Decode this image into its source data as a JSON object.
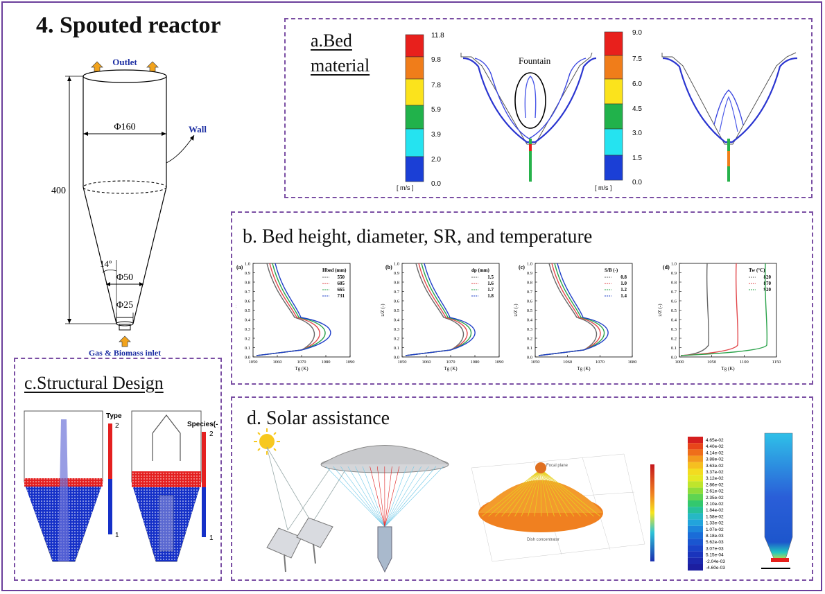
{
  "main_title": "4. Spouted reactor",
  "reactor": {
    "outlet": "Outlet",
    "wall": "Wall",
    "inlet": "Gas & Biomass inlet",
    "d160": "Φ160",
    "d50": "Φ50",
    "d25": "Φ25",
    "height": "400",
    "angle": "14º"
  },
  "panel_a": {
    "title_line1": "a.Bed",
    "title_line2": "material",
    "fountain": "Fountain",
    "unit": "[ m/s ]",
    "scale1": [
      "11.8",
      "9.8",
      "7.8",
      "5.9",
      "3.9",
      "2.0",
      "0.0"
    ],
    "scale2": [
      "9.0",
      "7.5",
      "6.0",
      "4.5",
      "3.0",
      "1.5",
      "0.0"
    ]
  },
  "panel_b": {
    "title": "b. Bed height, diameter, SR, and temperature",
    "ylabel": "z/Z (-)",
    "xlabel": "Tg (K)",
    "yticks": [
      "1.0",
      "0.9",
      "0.8",
      "0.7",
      "0.6",
      "0.5",
      "0.4",
      "0.3",
      "0.2",
      "0.1",
      "0.0"
    ],
    "plots": [
      {
        "letter": "(a)",
        "legend_title": "Hbed (mm)",
        "legend": [
          "550",
          "605",
          "665",
          "731"
        ],
        "xticks": [
          "1050",
          "1060",
          "1070",
          "1080",
          "1090"
        ]
      },
      {
        "letter": "(b)",
        "legend_title": "dp (mm)",
        "legend": [
          "1.5",
          "1.6",
          "1.7",
          "1.8"
        ],
        "xticks": [
          "1050",
          "1060",
          "1070",
          "1080",
          "1090"
        ]
      },
      {
        "letter": "(c)",
        "legend_title": "S/B (-)",
        "legend": [
          "0.8",
          "1.0",
          "1.2",
          "1.4"
        ],
        "xticks": [
          "1050",
          "1060",
          "1070",
          "1080"
        ]
      },
      {
        "letter": "(d)",
        "legend_title": "Tw (°C)",
        "legend": [
          "820",
          "870",
          "920"
        ],
        "xticks": [
          "1000",
          "1050",
          "1100",
          "1150"
        ]
      }
    ]
  },
  "panel_c": {
    "title": "c.Structural Design",
    "legend1": "Type",
    "legend2": "Species(-)",
    "max": "2",
    "min": "1"
  },
  "panel_d": {
    "title": "d. Solar assistance",
    "focal": "Focal plane",
    "dish": "Dish concentrator",
    "scale": [
      "4.65e-02",
      "4.40e-02",
      "4.14e-02",
      "3.88e-02",
      "3.63e-02",
      "3.37e-02",
      "3.12e-02",
      "2.86e-02",
      "2.61e-02",
      "2.35e-02",
      "2.10e-02",
      "1.84e-02",
      "1.58e-02",
      "1.33e-02",
      "1.07e-02",
      "8.18e-03",
      "5.62e-03",
      "3.07e-03",
      "5.15e-04",
      "-2.04e-03",
      "-4.60e-03"
    ]
  },
  "colors": {
    "frame": "#6a3d9a",
    "dash": "#7a4ea3",
    "rainbow": [
      "#e8201c",
      "#f07d1a",
      "#fbe31c",
      "#21b24b",
      "#25e3f0",
      "#1b3fd6"
    ]
  }
}
